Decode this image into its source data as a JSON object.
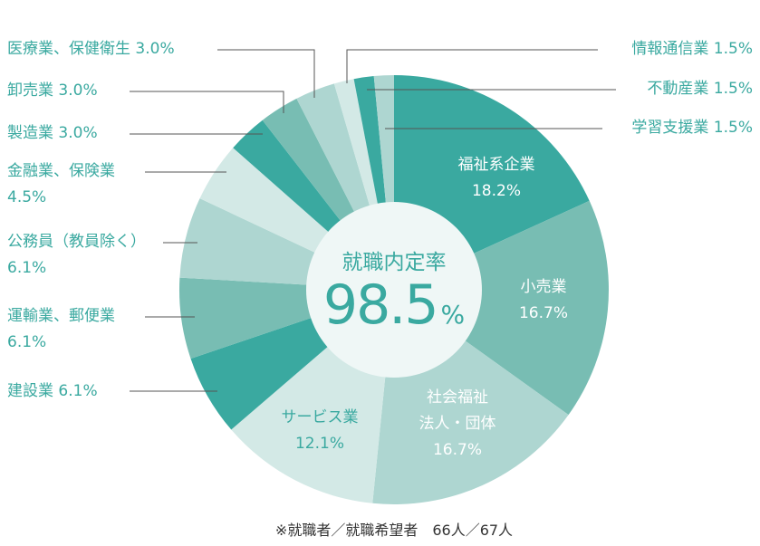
{
  "chart_data": {
    "type": "pie",
    "categories": [
      "福祉系企業",
      "小売業",
      "社会福祉\n法人・団体",
      "サービス業",
      "建設業",
      "運輸業、郵便業",
      "公務員（教員除く）",
      "金融業、保険業",
      "製造業",
      "卸売業",
      "医療業、保健衛生",
      "情報通信業",
      "不動産業",
      "学習支援業"
    ],
    "values": [
      18.2,
      16.7,
      16.7,
      12.1,
      6.1,
      6.1,
      6.1,
      4.5,
      3.0,
      3.0,
      3.0,
      1.5,
      1.5,
      1.5
    ],
    "value_labels": [
      "18.2%",
      "16.7%",
      "16.7%",
      "12.1%",
      "6.1%",
      "6.1%",
      "6.1%",
      "4.5%",
      "3.0%",
      "3.0%",
      "3.0%",
      "1.5%",
      "1.5%",
      "1.5%"
    ],
    "colors": [
      "#3aa9a0",
      "#78bdb3",
      "#aed6d1",
      "#d3e9e6",
      "#3aa9a0",
      "#78bdb3",
      "#aed6d1",
      "#d3e9e6",
      "#3aa9a0",
      "#78bdb3",
      "#aed6d1",
      "#d3e9e6",
      "#3aa9a0",
      "#aed6d1"
    ],
    "center_title": "就職内定率",
    "center_value": "98.5",
    "center_unit": "%",
    "note": "※就職者／就職希望者　66人／67人"
  }
}
